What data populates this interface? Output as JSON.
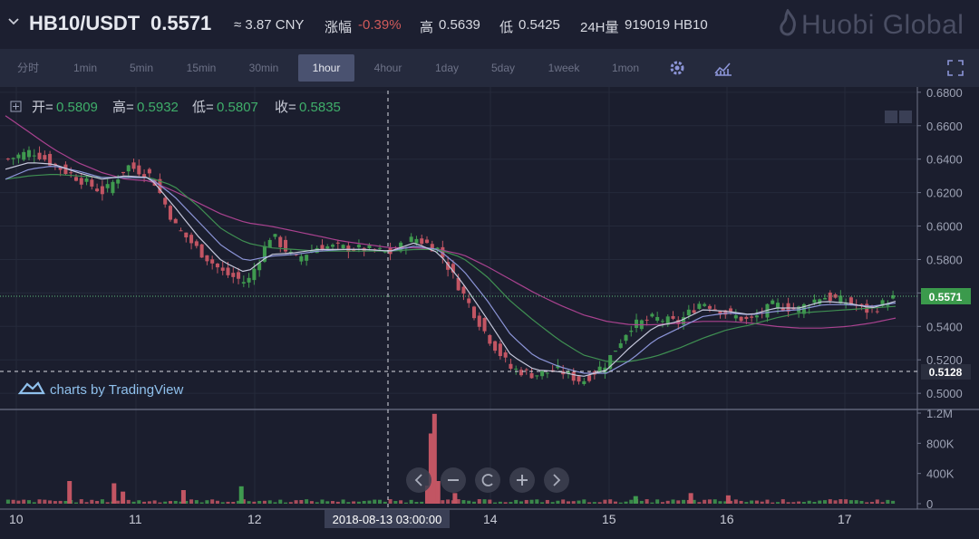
{
  "header": {
    "pair": "HB10/USDT",
    "price": "0.5571",
    "cny": "≈ 3.87 CNY",
    "change_label": "涨幅",
    "change_value": "-0.39%",
    "high_label": "高",
    "high_value": "0.5639",
    "low_label": "低",
    "low_value": "0.5425",
    "volume_label": "24H量",
    "volume_value": "919019 HB10",
    "brand": "Huobi Global"
  },
  "toolbar": {
    "intervals": [
      "分时",
      "1min",
      "5min",
      "15min",
      "30min",
      "1hour",
      "4hour",
      "1day",
      "5day",
      "1week",
      "1mon"
    ],
    "active_interval": "1hour"
  },
  "ohlc": {
    "open_label": "开=",
    "open": "0.5809",
    "high_label": "高=",
    "high": "0.5932",
    "low_label": "低=",
    "low": "0.5807",
    "close_label": "收=",
    "close": "0.5835"
  },
  "watermark": "charts by TradingView",
  "crosshair_label": "2018-08-13 03:00:00",
  "colors": {
    "background": "#1b1e2e",
    "up": "#3f9a4f",
    "down": "#c25563",
    "ma_short": "#c6c8dc",
    "ma_mid": "#8c95d8",
    "ma_green": "#3f8f52",
    "ma_long": "#a9428f",
    "price_label_bg": "#3b9a4c"
  },
  "chart_data": {
    "type": "candlestick",
    "title": "",
    "x_tick_labels": [
      "10",
      "11",
      "12",
      "14",
      "15",
      "16",
      "17"
    ],
    "price_axis": {
      "range": [
        0.4925,
        0.681
      ],
      "ticks": [
        0.5,
        0.52,
        0.54,
        0.56,
        0.58,
        0.6,
        0.62,
        0.64,
        0.66,
        0.68
      ],
      "tick_labels": [
        "0.5000",
        "0.5200",
        "0.5400",
        "0.5600",
        "0.5800",
        "0.6000",
        "0.6200",
        "0.6400",
        "0.6600",
        "0.6800"
      ]
    },
    "current_price": 0.5571,
    "current_price_label": "0.5571",
    "crosshair_price": 0.5128,
    "crosshair_price_label": "0.5128",
    "volume_axis": {
      "max": 1200000,
      "ticks": [
        0,
        400000,
        800000,
        1200000
      ],
      "tick_labels": [
        "0",
        "400K",
        "800K",
        "1.2M"
      ]
    },
    "close_path": [
      0.64,
      0.645,
      0.636,
      0.628,
      0.62,
      0.636,
      0.63,
      0.6,
      0.585,
      0.572,
      0.566,
      0.595,
      0.58,
      0.588,
      0.587,
      0.586,
      0.584,
      0.593,
      0.586,
      0.56,
      0.535,
      0.515,
      0.511,
      0.514,
      0.507,
      0.518,
      0.54,
      0.545,
      0.542,
      0.555,
      0.548,
      0.543,
      0.553,
      0.55,
      0.558,
      0.555,
      0.549,
      0.557
    ],
    "candles_count": 170,
    "ma_short": [
      0.634,
      0.638,
      0.637,
      0.632,
      0.628,
      0.63,
      0.629,
      0.612,
      0.594,
      0.579,
      0.572,
      0.583,
      0.584,
      0.586,
      0.586,
      0.586,
      0.585,
      0.59,
      0.584,
      0.566,
      0.545,
      0.523,
      0.514,
      0.513,
      0.51,
      0.514,
      0.528,
      0.54,
      0.543,
      0.55,
      0.549,
      0.547,
      0.551,
      0.551,
      0.555,
      0.554,
      0.551,
      0.555
    ],
    "ma_mid": [
      0.628,
      0.634,
      0.636,
      0.633,
      0.629,
      0.629,
      0.629,
      0.618,
      0.603,
      0.588,
      0.579,
      0.582,
      0.583,
      0.585,
      0.586,
      0.586,
      0.585,
      0.588,
      0.586,
      0.574,
      0.556,
      0.535,
      0.522,
      0.516,
      0.512,
      0.512,
      0.52,
      0.532,
      0.539,
      0.546,
      0.548,
      0.547,
      0.549,
      0.55,
      0.553,
      0.553,
      0.552,
      0.554
    ],
    "ma_green": [
      0.628,
      0.63,
      0.631,
      0.63,
      0.629,
      0.629,
      0.629,
      0.624,
      0.612,
      0.598,
      0.59,
      0.587,
      0.586,
      0.585,
      0.585,
      0.585,
      0.585,
      0.586,
      0.586,
      0.581,
      0.57,
      0.555,
      0.543,
      0.532,
      0.523,
      0.519,
      0.519,
      0.522,
      0.527,
      0.533,
      0.538,
      0.541,
      0.545,
      0.548,
      0.549,
      0.55,
      0.551,
      0.552
    ],
    "ma_long": [
      0.666,
      0.656,
      0.646,
      0.638,
      0.632,
      0.628,
      0.627,
      0.621,
      0.614,
      0.607,
      0.602,
      0.6,
      0.597,
      0.594,
      0.591,
      0.589,
      0.587,
      0.587,
      0.586,
      0.583,
      0.576,
      0.568,
      0.56,
      0.553,
      0.547,
      0.543,
      0.541,
      0.541,
      0.542,
      0.543,
      0.543,
      0.542,
      0.54,
      0.539,
      0.539,
      0.54,
      0.542,
      0.545
    ],
    "volume_spikes": [
      {
        "pos": 0.072,
        "value": 300000,
        "dir": "down"
      },
      {
        "pos": 0.122,
        "value": 270000,
        "dir": "down"
      },
      {
        "pos": 0.132,
        "value": 160000,
        "dir": "down"
      },
      {
        "pos": 0.2,
        "value": 180000,
        "dir": "down"
      },
      {
        "pos": 0.265,
        "value": 230000,
        "dir": "up"
      },
      {
        "pos": 0.474,
        "value": 240000,
        "dir": "down"
      },
      {
        "pos": 0.478,
        "value": 930000,
        "dir": "down"
      },
      {
        "pos": 0.482,
        "value": 1190000,
        "dir": "down"
      },
      {
        "pos": 0.486,
        "value": 300000,
        "dir": "down"
      },
      {
        "pos": 0.505,
        "value": 140000,
        "dir": "down"
      },
      {
        "pos": 0.708,
        "value": 100000,
        "dir": "up"
      },
      {
        "pos": 0.77,
        "value": 140000,
        "dir": "down"
      },
      {
        "pos": 0.812,
        "value": 110000,
        "dir": "down"
      }
    ]
  }
}
